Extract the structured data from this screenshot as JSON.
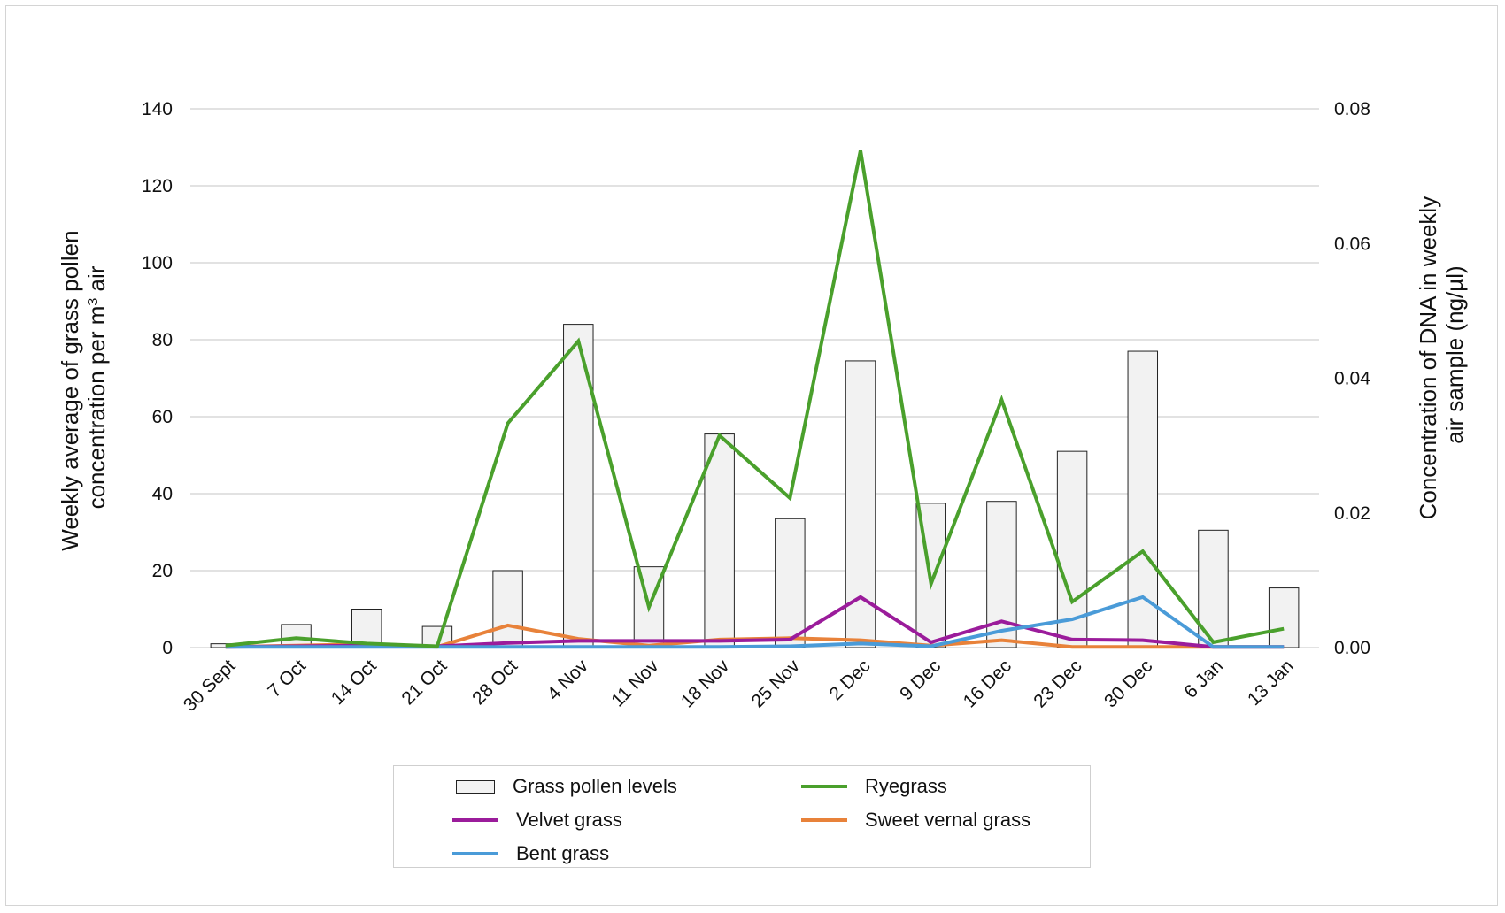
{
  "chart_data": {
    "type": "bar",
    "categories": [
      "30 Sept",
      "7 Oct",
      "14 Oct",
      "21 Oct",
      "28 Oct",
      "4 Nov",
      "11 Nov",
      "18 Nov",
      "25 Nov",
      "2 Dec",
      "9 Dec",
      "16 Dec",
      "23 Dec",
      "30 Dec",
      "6 Jan",
      "13 Jan"
    ],
    "bar_series": {
      "name": "Grass pollen levels",
      "axis": "left",
      "color": "#f2f2f2",
      "values": [
        1,
        6,
        10,
        5.5,
        20,
        84,
        21,
        55.5,
        33.5,
        74.5,
        37.5,
        38,
        51,
        77,
        30.5,
        15.5
      ]
    },
    "line_series": [
      {
        "name": "Ryegrass",
        "axis": "right",
        "color": "#4aa02c",
        "values": [
          0.0003,
          0.0014,
          0.0006,
          0.0002,
          0.0333,
          0.0455,
          0.006,
          0.0315,
          0.0222,
          0.0738,
          0.0095,
          0.0368,
          0.0068,
          0.0143,
          0.0008,
          0.0028
        ]
      },
      {
        "name": "Velvet grass",
        "axis": "right",
        "color": "#9b1c9b",
        "values": [
          0.0001,
          0.0002,
          0.0003,
          0.0002,
          0.0007,
          0.001,
          0.001,
          0.001,
          0.0012,
          0.0075,
          0.0008,
          0.0039,
          0.0012,
          0.0011,
          0.0001,
          0.0001
        ]
      },
      {
        "name": "Sweet vernal grass",
        "axis": "right",
        "color": "#e8823a",
        "values": [
          0.0001,
          0.0003,
          0.0005,
          0.0001,
          0.0033,
          0.0013,
          0.0003,
          0.0012,
          0.0014,
          0.0011,
          0.0003,
          0.0011,
          0.0001,
          0.0001,
          0.0001,
          0.0001
        ]
      },
      {
        "name": "Bent grass",
        "axis": "right",
        "color": "#4a9bd8",
        "values": [
          0.0001,
          0.0001,
          0.0001,
          0.0001,
          0.0001,
          0.0001,
          0.0001,
          0.0001,
          0.0002,
          0.0006,
          0.0002,
          0.0025,
          0.0042,
          0.0075,
          0.0001,
          0.0001
        ]
      }
    ],
    "y_left": {
      "label_line1": "Weekly average of grass pollen",
      "label_line2": "concentration per m",
      "label_sup": "3",
      "label_line2_end": " air",
      "min": 0,
      "max": 140,
      "ticks": [
        0,
        20,
        40,
        60,
        80,
        100,
        120,
        140
      ]
    },
    "y_right": {
      "label_line1": "Concentration of DNA in weekly",
      "label_line2": "air sample (ng/µl)",
      "min": 0,
      "max": 0.08,
      "ticks": [
        "0.00",
        "0.02",
        "0.04",
        "0.06",
        "0.08"
      ]
    },
    "grid": true,
    "legend_position": "bottom"
  }
}
